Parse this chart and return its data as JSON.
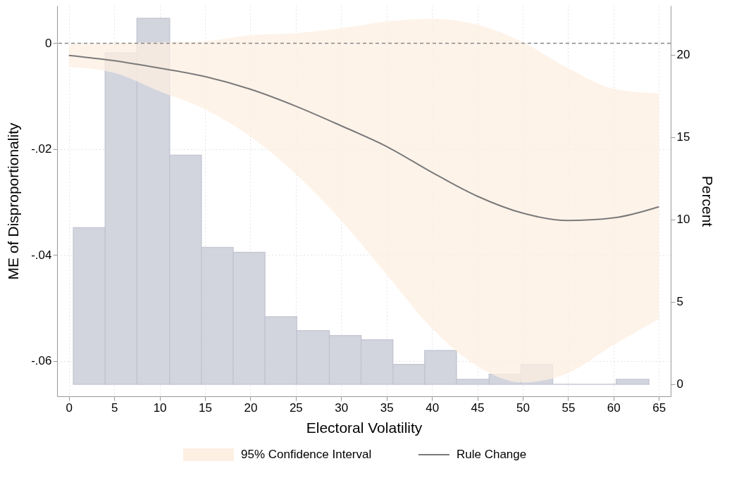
{
  "chart_data": {
    "type": "line",
    "xlabel": "Electoral Volatility",
    "ylabel": "ME of Disproportionality",
    "y2label": "Percent",
    "x": [
      0,
      5,
      10,
      15,
      20,
      25,
      30,
      35,
      40,
      45,
      50,
      55,
      60,
      65
    ],
    "series": [
      {
        "type": "histogram",
        "axis": "y2",
        "color": "#d0d3dd",
        "bins": [
          0.5,
          4,
          7.5,
          11.1,
          14.6,
          18.1,
          21.6,
          25.1,
          28.7,
          32.2,
          35.7,
          39.2,
          42.7,
          46.3,
          49.8,
          53.3,
          56.8,
          60.3,
          63.9
        ],
        "values": [
          9.5,
          20.1,
          22.2,
          13.9,
          8.3,
          8.0,
          4.1,
          3.25,
          2.95,
          2.7,
          1.2,
          2.05,
          0.3,
          0.6,
          1.2,
          0,
          0,
          0.3
        ]
      },
      {
        "type": "area",
        "name": "95% Confidence Interval",
        "color": "#fdefe2",
        "values": [
          null,
          null,
          null,
          null,
          null,
          null,
          null,
          null,
          null,
          null,
          null,
          null,
          null,
          null
        ]
      },
      {
        "name": "Rule Change",
        "color": "#7a7a7a",
        "line_style": "solid",
        "values": [
          -0.0023,
          -0.0033,
          -0.0047,
          -0.0063,
          -0.0087,
          -0.0119,
          -0.0156,
          -0.0195,
          -0.0244,
          -0.0289,
          -0.0321,
          -0.0335,
          -0.033,
          -0.0309
        ],
        "lower": [
          -0.0045,
          -0.0056,
          -0.0091,
          -0.0125,
          -0.0176,
          -0.0247,
          -0.0335,
          -0.0437,
          -0.0539,
          -0.061,
          -0.0641,
          -0.0623,
          -0.057,
          -0.0521
        ],
        "upper": [
          -0.0002,
          0,
          0.0002,
          0.0004,
          0.0015,
          0.0019,
          0.0028,
          0.0041,
          0.0046,
          0.0035,
          0.0002,
          -0.0047,
          -0.0086,
          -0.0095
        ]
      }
    ],
    "xlim": [
      -1.3,
      66.3
    ],
    "xticks": [
      0,
      5,
      10,
      15,
      20,
      25,
      30,
      35,
      40,
      45,
      50,
      55,
      60,
      65
    ],
    "ylim": [
      -0.0667,
      0.0071
    ],
    "yticks": [
      {
        "value": -0.06,
        "label": "-.06"
      },
      {
        "value": -0.04,
        "label": "-.04"
      },
      {
        "value": -0.02,
        "label": "-.02"
      },
      0
    ],
    "y2lim": [
      -0.73,
      22.97
    ],
    "y2ticks": [
      0,
      5,
      10,
      15,
      20
    ],
    "ref_lines": [
      {
        "axis": "y",
        "value": 0,
        "color": "#888888",
        "line_style": "dashed"
      }
    ],
    "grid": true,
    "legend": "bottom"
  }
}
